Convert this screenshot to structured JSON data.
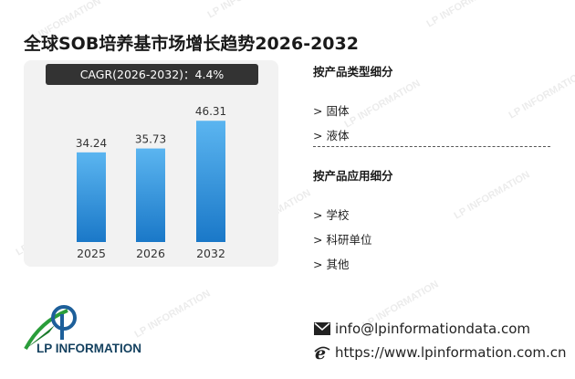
{
  "title": "全球SOB培养基市场增长趋势2026-2032",
  "cagr_label": "CAGR(2026-2032)：4.4%",
  "chart_data": {
    "type": "bar",
    "categories": [
      "2025",
      "2026",
      "2032"
    ],
    "values": [
      34.24,
      35.73,
      46.31
    ],
    "value_labels": [
      "34.24",
      "35.73",
      "46.31"
    ],
    "ylim": [
      0,
      60
    ],
    "grid": false,
    "colors": {
      "bar_top": "#5bb5f0",
      "bar_bottom": "#1a78c8"
    }
  },
  "segments": {
    "by_type": {
      "heading": "按产品类型细分",
      "items": [
        "> 固体",
        "> 液体"
      ]
    },
    "by_application": {
      "heading": "按产品应用细分",
      "items": [
        "> 学校",
        "> 科研单位",
        "> 其他"
      ]
    }
  },
  "contact": {
    "email": "info@lpinformationdata.com",
    "website": "https://www.lpinformation.com.cn",
    "email_icon": "envelope-icon",
    "web_icon": "ie-browser-icon"
  },
  "logo": {
    "text": "LP INFORMATION"
  },
  "watermark": "LP INFORMATION"
}
